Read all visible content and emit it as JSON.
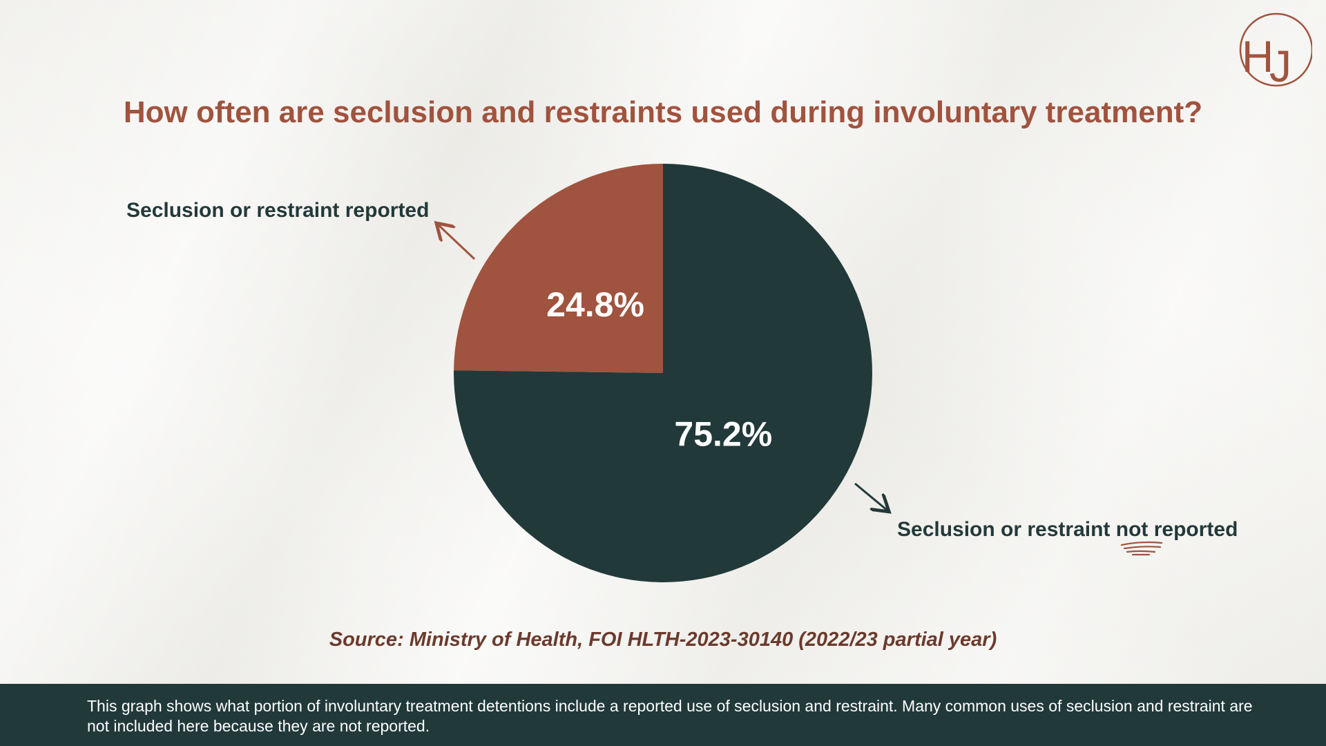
{
  "title": "How often are seclusion and restraints used during involuntary treatment?",
  "logo": {
    "text_h": "H",
    "text_j": "J"
  },
  "colors": {
    "accent": "#a0533e",
    "dark": "#22393a",
    "background": "#f1f0ec"
  },
  "chart_data": {
    "type": "pie",
    "title": "How often are seclusion and restraints used during involuntary treatment?",
    "slices": [
      {
        "name": "Seclusion or restraint reported",
        "value": 24.8,
        "label": "24.8%",
        "color": "#a0533e"
      },
      {
        "name": "Seclusion or restraint not reported",
        "value": 75.2,
        "label": "75.2%",
        "color": "#22393a"
      }
    ]
  },
  "annotations": {
    "reported": "Seclusion or restraint reported",
    "not_reported_prefix": "Seclusion or restraint ",
    "not_reported_emphasis": "not",
    "not_reported_suffix": " reported"
  },
  "source": "Source: Ministry of Health, FOI HLTH-2023-30140 (2022/23 partial year)",
  "footer": "This graph shows what portion of involuntary treatment detentions include a reported use of seclusion and restraint. Many common uses of seclusion and restraint are not included here because they are not reported."
}
